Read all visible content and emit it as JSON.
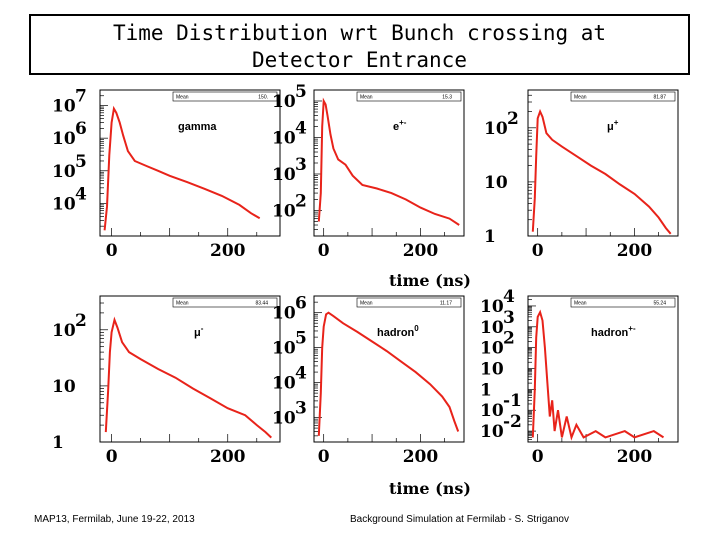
{
  "title_line1": "Time Distribution wrt Bunch crossing at",
  "title_line2": "Detector Entrance",
  "footer_left": "MAP13, Fermilab, June 19-22, 2013",
  "footer_right": "Background Simulation at Fermilab - S. Striganov",
  "colors": {
    "line": "#e8231a",
    "frame": "#000000"
  },
  "chart_data": [
    {
      "type": "line",
      "name": "gamma",
      "panel_label": "gamma",
      "stat_label": "Mean",
      "stat_value": "150.",
      "xlabel": "",
      "x_ticks": [
        "0",
        "200"
      ],
      "xlim": [
        -20,
        290
      ],
      "yscale": "log",
      "ylim": [
        1000,
        30000000
      ],
      "y_ticks": [
        {
          "base": "10",
          "exp": "7",
          "value": 10000000
        },
        {
          "base": "10",
          "exp": "6",
          "value": 1000000
        },
        {
          "base": "10",
          "exp": "5",
          "value": 100000
        },
        {
          "base": "10",
          "exp": "4",
          "value": 10000
        }
      ],
      "series": [
        {
          "name": "gamma",
          "points": [
            [
              -12,
              1500
            ],
            [
              -8,
              8000
            ],
            [
              -4,
              300000
            ],
            [
              0,
              3000000
            ],
            [
              4,
              8000000
            ],
            [
              8,
              6000000
            ],
            [
              14,
              3000000
            ],
            [
              20,
              1200000
            ],
            [
              28,
              400000
            ],
            [
              40,
              200000
            ],
            [
              60,
              140000
            ],
            [
              80,
              100000
            ],
            [
              100,
              70000
            ],
            [
              130,
              45000
            ],
            [
              160,
              28000
            ],
            [
              190,
              17000
            ],
            [
              220,
              9000
            ],
            [
              240,
              5000
            ],
            [
              255,
              3500
            ]
          ]
        }
      ]
    },
    {
      "type": "line",
      "name": "e+-",
      "panel_label": "e",
      "panel_label_sup": "+-",
      "stat_label": "Mean",
      "stat_value": "15.3",
      "xlabel": "",
      "x_ticks": [
        "0",
        "200"
      ],
      "xlim": [
        -20,
        290
      ],
      "yscale": "log",
      "ylim": [
        20,
        200000
      ],
      "y_ticks": [
        {
          "base": "10",
          "exp": "5",
          "value": 100000
        },
        {
          "base": "10",
          "exp": "4",
          "value": 10000
        },
        {
          "base": "10",
          "exp": "3",
          "value": 1000
        },
        {
          "base": "10",
          "exp": "2",
          "value": 100
        }
      ],
      "series": [
        {
          "name": "e+-",
          "points": [
            [
              -10,
              50
            ],
            [
              -6,
              300
            ],
            [
              -3,
              20000
            ],
            [
              0,
              100000
            ],
            [
              4,
              80000
            ],
            [
              8,
              40000
            ],
            [
              14,
              12000
            ],
            [
              20,
              5000
            ],
            [
              30,
              2500
            ],
            [
              45,
              1800
            ],
            [
              60,
              900
            ],
            [
              80,
              500
            ],
            [
              110,
              400
            ],
            [
              140,
              300
            ],
            [
              170,
              200
            ],
            [
              200,
              120
            ],
            [
              230,
              80
            ],
            [
              260,
              60
            ],
            [
              280,
              40
            ]
          ]
        }
      ]
    },
    {
      "type": "line",
      "name": "mu+",
      "panel_label": "μ",
      "panel_label_sup": "+",
      "stat_label": "Mean",
      "stat_value": "81.87",
      "xlabel": "",
      "x_ticks": [
        "0",
        "200"
      ],
      "xlim": [
        -20,
        290
      ],
      "yscale": "log",
      "ylim": [
        1,
        500
      ],
      "y_ticks": [
        {
          "base": "10",
          "exp": "2",
          "value": 100
        },
        {
          "base": "10",
          "exp": "",
          "value": 10
        },
        {
          "base": "1",
          "exp": "",
          "value": 1
        }
      ],
      "series": [
        {
          "name": "mu+",
          "points": [
            [
              -10,
              1.2
            ],
            [
              -6,
              5
            ],
            [
              -3,
              30
            ],
            [
              0,
              150
            ],
            [
              5,
              200
            ],
            [
              10,
              160
            ],
            [
              18,
              80
            ],
            [
              30,
              60
            ],
            [
              50,
              45
            ],
            [
              80,
              30
            ],
            [
              110,
              20
            ],
            [
              140,
              14
            ],
            [
              170,
              9
            ],
            [
              200,
              6
            ],
            [
              230,
              3.5
            ],
            [
              250,
              2.2
            ],
            [
              265,
              1.4
            ],
            [
              275,
              1.1
            ]
          ]
        }
      ]
    },
    {
      "type": "line",
      "name": "mu-",
      "panel_label": "μ",
      "panel_label_sup": "-",
      "stat_label": "Mean",
      "stat_value": "83.44",
      "xlabel": "time (ns)",
      "x_ticks": [
        "0",
        "200"
      ],
      "xlim": [
        -20,
        290
      ],
      "yscale": "log",
      "ylim": [
        1,
        400
      ],
      "y_ticks": [
        {
          "base": "10",
          "exp": "2",
          "value": 100
        },
        {
          "base": "10",
          "exp": "",
          "value": 10
        },
        {
          "base": "1",
          "exp": "",
          "value": 1
        }
      ],
      "series": [
        {
          "name": "mu-",
          "points": [
            [
              -10,
              1.5
            ],
            [
              -6,
              8
            ],
            [
              -3,
              40
            ],
            [
              0,
              90
            ],
            [
              5,
              150
            ],
            [
              10,
              110
            ],
            [
              18,
              60
            ],
            [
              30,
              40
            ],
            [
              50,
              30
            ],
            [
              80,
              20
            ],
            [
              110,
              14
            ],
            [
              140,
              9
            ],
            [
              170,
              6
            ],
            [
              200,
              4
            ],
            [
              230,
              3
            ],
            [
              250,
              2
            ],
            [
              265,
              1.5
            ],
            [
              275,
              1.2
            ]
          ]
        }
      ]
    },
    {
      "type": "line",
      "name": "hadron0",
      "panel_label": "hadron",
      "panel_label_sup": "0",
      "stat_label": "Mean",
      "stat_value": "11.17",
      "xlabel": "time (ns)",
      "x_ticks": [
        "0",
        "200"
      ],
      "xlim": [
        -20,
        290
      ],
      "yscale": "log",
      "ylim": [
        200,
        3000000
      ],
      "y_ticks": [
        {
          "base": "10",
          "exp": "6",
          "value": 1000000
        },
        {
          "base": "10",
          "exp": "5",
          "value": 100000
        },
        {
          "base": "10",
          "exp": "4",
          "value": 10000
        },
        {
          "base": "10",
          "exp": "3",
          "value": 1000
        }
      ],
      "series": [
        {
          "name": "hadron0",
          "points": [
            [
              -10,
              300
            ],
            [
              -6,
              5000
            ],
            [
              -3,
              100000
            ],
            [
              0,
              400000
            ],
            [
              5,
              900000
            ],
            [
              10,
              1000000
            ],
            [
              20,
              800000
            ],
            [
              40,
              500000
            ],
            [
              70,
              280000
            ],
            [
              100,
              150000
            ],
            [
              130,
              80000
            ],
            [
              160,
              40000
            ],
            [
              190,
              20000
            ],
            [
              220,
              9000
            ],
            [
              245,
              4000
            ],
            [
              260,
              2000
            ],
            [
              270,
              800
            ],
            [
              278,
              400
            ]
          ]
        }
      ]
    },
    {
      "type": "line",
      "name": "hadron+-",
      "panel_label": "hadron",
      "panel_label_sup": "+-",
      "stat_label": "Mean",
      "stat_value": "55.24",
      "xlabel": "time (ns)",
      "x_ticks": [
        "0",
        "200"
      ],
      "xlim": [
        -20,
        290
      ],
      "yscale": "log",
      "ylim": [
        0.003,
        30000
      ],
      "y_ticks": [
        {
          "base": "10",
          "exp": "4",
          "value": 10000
        },
        {
          "base": "10",
          "exp": "3",
          "value": 1000
        },
        {
          "base": "10",
          "exp": "2",
          "value": 100
        },
        {
          "base": "10",
          "exp": "",
          "value": 10
        },
        {
          "base": "1",
          "exp": "",
          "value": 1
        },
        {
          "base": "10",
          "exp": "-1",
          "value": 0.1
        },
        {
          "base": "10",
          "exp": "-2",
          "value": 0.01
        }
      ],
      "series": [
        {
          "name": "hadron+-",
          "points": [
            [
              -10,
              0.005
            ],
            [
              -6,
              1
            ],
            [
              -3,
              300
            ],
            [
              0,
              3000
            ],
            [
              5,
              5000
            ],
            [
              10,
              2000
            ],
            [
              15,
              100
            ],
            [
              20,
              2
            ],
            [
              25,
              0.05
            ],
            [
              30,
              0.3
            ],
            [
              35,
              0.01
            ],
            [
              42,
              0.1
            ],
            [
              50,
              0.005
            ],
            [
              60,
              0.05
            ],
            [
              70,
              0.005
            ],
            [
              80,
              0.02
            ],
            [
              95,
              0.005
            ],
            [
              120,
              0.01
            ],
            [
              140,
              0.005
            ],
            [
              180,
              0.01
            ],
            [
              200,
              0.005
            ],
            [
              240,
              0.01
            ],
            [
              260,
              0.005
            ]
          ]
        }
      ]
    }
  ]
}
